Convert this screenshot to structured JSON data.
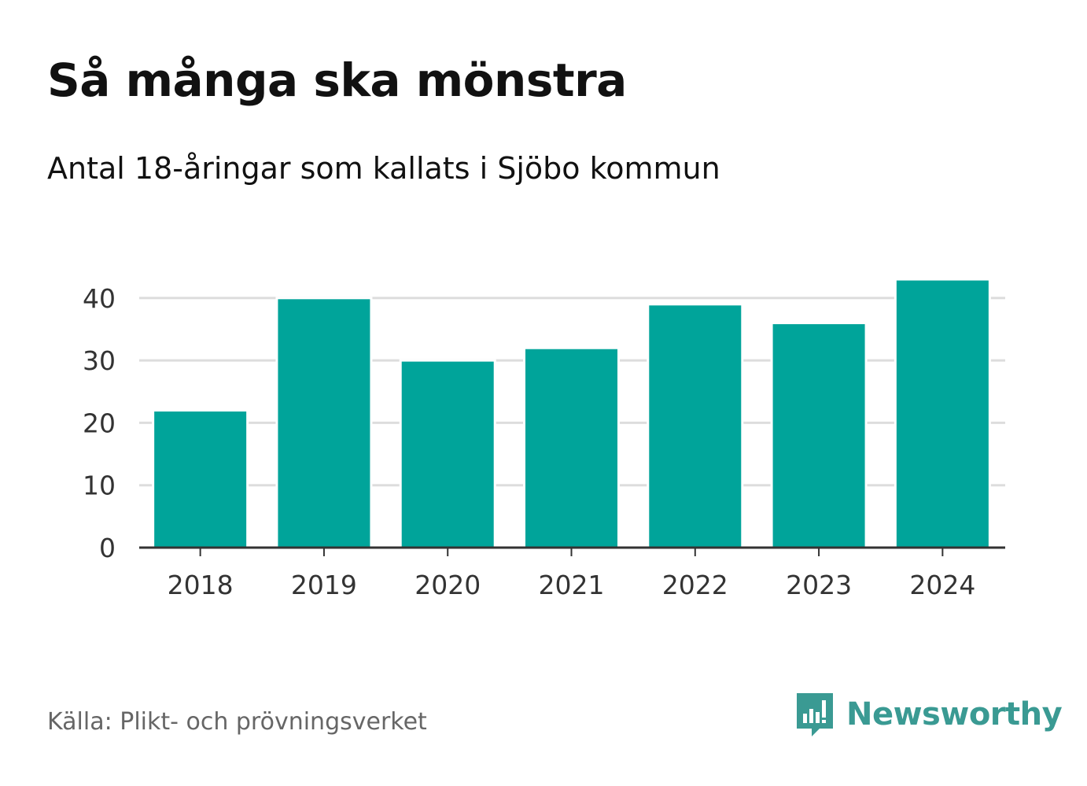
{
  "chart_data": {
    "type": "bar",
    "title": "Så många ska mönstra",
    "subtitle": "Antal 18-åringar som kallats i Sjöbo kommun",
    "categories": [
      "2018",
      "2019",
      "2020",
      "2021",
      "2022",
      "2023",
      "2024"
    ],
    "values": [
      22,
      40,
      30,
      32,
      39,
      36,
      43
    ],
    "ylim": [
      0,
      45
    ],
    "yticks": [
      0,
      10,
      20,
      30,
      40
    ],
    "xlabel": "",
    "ylabel": "",
    "grid": true,
    "bar_color": "#00a49a"
  },
  "footer": {
    "source": "Källa: Plikt- och prövningsverket",
    "brand": "Newsworthy",
    "brand_color": "#3a9a93"
  }
}
